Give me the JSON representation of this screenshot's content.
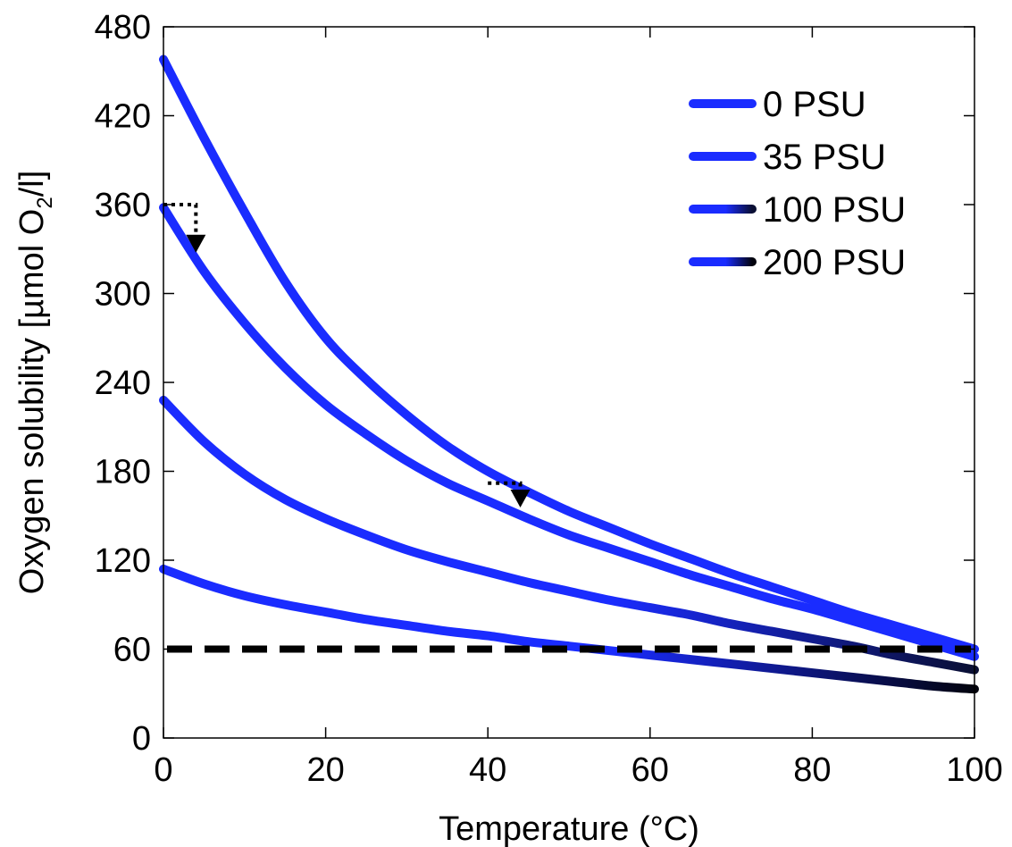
{
  "chart_data": {
    "type": "line",
    "xlabel": "Temperature (°C)",
    "ylabel_parts": {
      "before": "Oxygen solubility [µmol O",
      "subscript": "2",
      "after": "/l]"
    },
    "xlim": [
      0,
      100
    ],
    "ylim": [
      0,
      480
    ],
    "xticks": [
      0,
      20,
      40,
      60,
      80,
      100
    ],
    "yticks": [
      0,
      60,
      120,
      180,
      240,
      300,
      360,
      420,
      480
    ],
    "grid": false,
    "legend_placement": "top-right",
    "x": [
      0,
      5,
      10,
      15,
      20,
      25,
      30,
      35,
      40,
      45,
      50,
      55,
      60,
      65,
      70,
      75,
      80,
      85,
      90,
      95,
      100
    ],
    "series": [
      {
        "name": "0 PSU",
        "color_start": "#1a2cff",
        "color_end": "#1a2cff",
        "values": [
          458,
          405,
          355,
          308,
          270,
          242,
          218,
          197,
          180,
          166,
          153,
          142,
          131,
          121,
          111,
          102,
          93,
          84,
          76,
          68,
          60
        ]
      },
      {
        "name": "35 PSU",
        "color_start": "#1a2cff",
        "color_end": "#1a2cff",
        "values": [
          358,
          315,
          280,
          250,
          225,
          205,
          187,
          172,
          160,
          148,
          137,
          128,
          119,
          110,
          102,
          94,
          87,
          79,
          71,
          63,
          55
        ]
      },
      {
        "name": "100 PSU",
        "color_start": "#1a2cff",
        "color_end": "#0a0f33",
        "values": [
          228,
          200,
          178,
          161,
          148,
          137,
          127,
          119,
          112,
          105,
          99,
          93,
          88,
          83,
          77,
          72,
          67,
          62,
          56,
          51,
          46
        ]
      },
      {
        "name": "200 PSU",
        "color_start": "#1a2cff",
        "color_end": "#02030d",
        "values": [
          114,
          104,
          96,
          90,
          85,
          80,
          76,
          72,
          69,
          65,
          62,
          59,
          56,
          53,
          50,
          47,
          44,
          41,
          38,
          35,
          33
        ]
      }
    ],
    "reference_line": {
      "y": 60,
      "style": "dashed",
      "color": "#000000"
    },
    "annotations": [
      {
        "type": "dotted-arrow",
        "from": [
          0,
          360
        ],
        "corner": [
          4,
          360
        ],
        "to": [
          4,
          330
        ]
      },
      {
        "type": "dotted-arrow",
        "from": [
          40,
          172
        ],
        "corner": [
          44,
          172
        ],
        "to": [
          44,
          158
        ]
      }
    ]
  }
}
